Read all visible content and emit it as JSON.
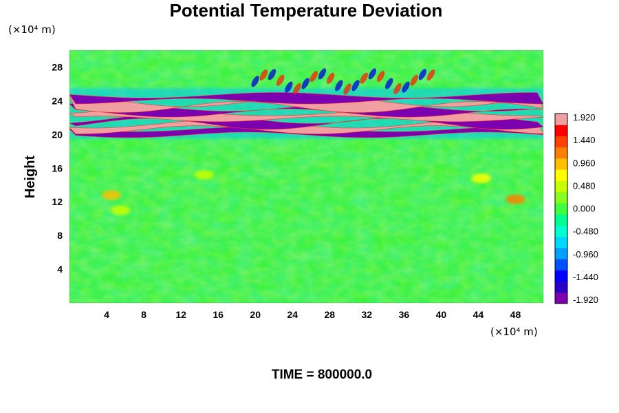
{
  "chart_data": {
    "type": "heatmap",
    "title": "Potential Temperature Deviation",
    "ylabel": "Height",
    "y_unit": "(×10⁴ m)",
    "x_unit": "(×10⁴ m)",
    "x_ticks": [
      4,
      8,
      12,
      16,
      20,
      24,
      28,
      32,
      36,
      40,
      44,
      48
    ],
    "y_ticks": [
      4,
      8,
      12,
      16,
      20,
      24,
      28
    ],
    "xlim": [
      0,
      51
    ],
    "ylim": [
      0,
      30
    ],
    "colorbar": {
      "labels": [
        "1.920",
        "1.440",
        "0.960",
        "0.480",
        "0.000",
        "-0.480",
        "-0.960",
        "-1.440",
        "-1.920"
      ],
      "min": -1.92,
      "max": 1.92,
      "colors": [
        "#7a00b0",
        "#2a00c8",
        "#0000ff",
        "#0050ff",
        "#00a0ff",
        "#00d8ff",
        "#00ffd0",
        "#00ff90",
        "#40ff40",
        "#88ff20",
        "#c8ff00",
        "#ffff00",
        "#ffc000",
        "#ff8000",
        "#ff4000",
        "#ff0000",
        "#f0a0a0"
      ]
    },
    "bands": [
      {
        "y": 20.3,
        "value": -1.92
      },
      {
        "y": 20.9,
        "value": 1.92
      },
      {
        "y": 21.6,
        "value": -1.92
      },
      {
        "y": 22.2,
        "value": 1.92
      },
      {
        "y": 22.9,
        "value": -1.92
      },
      {
        "y": 23.6,
        "value": 1.92
      },
      {
        "y": 24.3,
        "value": -1.92
      }
    ],
    "features": [
      {
        "x": 4.5,
        "y": 12.8,
        "value": 1.0
      },
      {
        "x": 5.5,
        "y": 11.0,
        "value": 0.5
      },
      {
        "x": 14.5,
        "y": 15.2,
        "value": 0.5
      },
      {
        "x": 44.3,
        "y": 14.8,
        "value": 0.7
      },
      {
        "x": 48.0,
        "y": 12.3,
        "value": 1.3
      }
    ]
  },
  "footer": {
    "time_label": "TIME = 800000.0"
  }
}
